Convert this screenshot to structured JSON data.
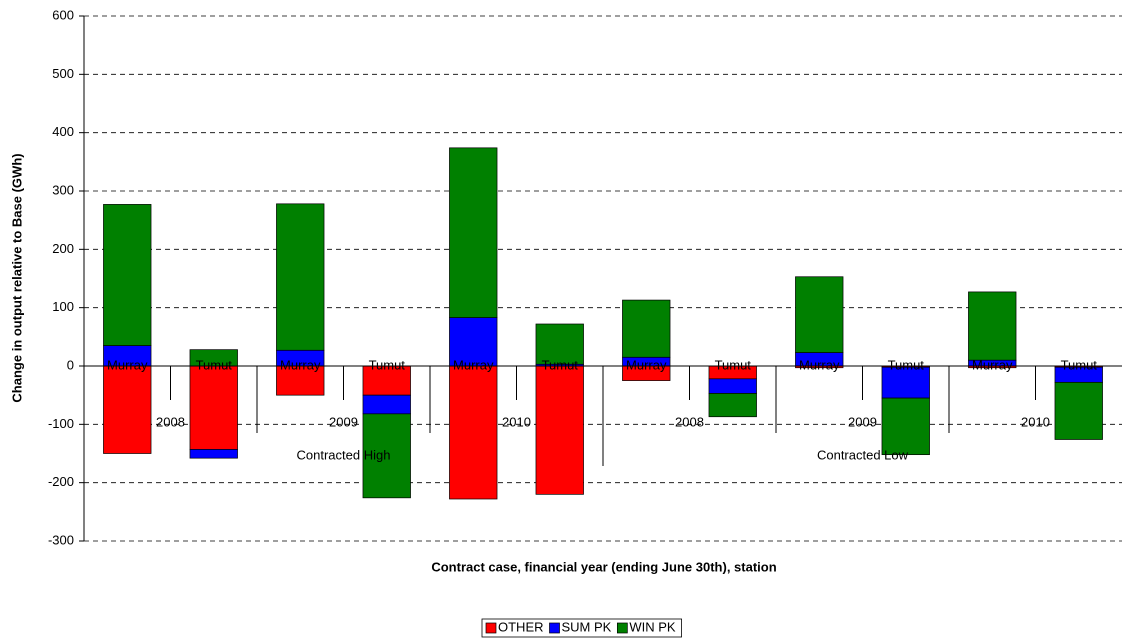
{
  "chart_data": {
    "type": "bar",
    "stacked": true,
    "y_label": "Change in output relative to Base (GWh)",
    "x_label": "Contract case, financial year (ending June 30th), station",
    "categories": [
      "Murray",
      "Tumut",
      "Murray",
      "Tumut",
      "Murray",
      "Tumut",
      "Murray",
      "Tumut",
      "Murray",
      "Tumut",
      "Murray",
      "Tumut"
    ],
    "year_labels": [
      "2008",
      "2009",
      "2010",
      "2008",
      "2009",
      "2010"
    ],
    "case_labels": [
      "Contracted High",
      "Contracted Low"
    ],
    "series": [
      {
        "name": "OTHER",
        "color": "#ff0000",
        "values": [
          -150,
          -143,
          -50,
          -50,
          -228,
          -220,
          -25,
          -22,
          -3,
          -2,
          -3,
          -2
        ]
      },
      {
        "name": "SUM PK",
        "color": "#0000ff",
        "values": [
          35,
          -15,
          27,
          -32,
          83,
          3,
          15,
          -25,
          23,
          -53,
          10,
          -26
        ]
      },
      {
        "name": "WIN PK",
        "color": "#008000",
        "values": [
          242,
          28,
          251,
          -144,
          291,
          69,
          98,
          -40,
          130,
          -97,
          117,
          -98
        ]
      }
    ],
    "ylim": [
      -300,
      600
    ],
    "yticks": [
      -300,
      -200,
      -100,
      0,
      100,
      200,
      300,
      400,
      500,
      600
    ],
    "grid": true,
    "legend": "bottom"
  }
}
